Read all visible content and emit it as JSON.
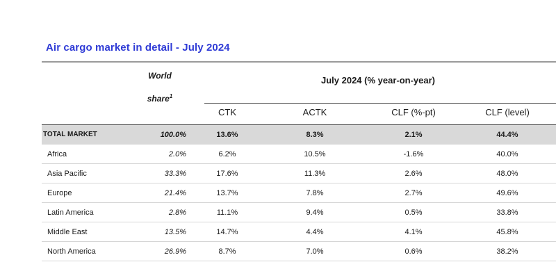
{
  "title": "Air cargo market in detail - July 2024",
  "header": {
    "world_line1": "World",
    "world_line2": "share",
    "world_sup": "1",
    "group_label": "July 2024 (% year-on-year)",
    "columns": [
      "CTK",
      "ACTK",
      "CLF (%-pt)",
      "CLF (level)"
    ]
  },
  "rows": [
    {
      "region": "TOTAL MARKET",
      "share": "100.0%",
      "ctk": "13.6%",
      "actk": "8.3%",
      "clf_pt": "2.1%",
      "clf_level": "44.4%"
    },
    {
      "region": "Africa",
      "share": "2.0%",
      "ctk": "6.2%",
      "actk": "10.5%",
      "clf_pt": "-1.6%",
      "clf_level": "40.0%"
    },
    {
      "region": "Asia Pacific",
      "share": "33.3%",
      "ctk": "17.6%",
      "actk": "11.3%",
      "clf_pt": "2.6%",
      "clf_level": "48.0%"
    },
    {
      "region": "Europe",
      "share": "21.4%",
      "ctk": "13.7%",
      "actk": "7.8%",
      "clf_pt": "2.7%",
      "clf_level": "49.6%"
    },
    {
      "region": "Latin America",
      "share": "2.8%",
      "ctk": "11.1%",
      "actk": "9.4%",
      "clf_pt": "0.5%",
      "clf_level": "33.8%"
    },
    {
      "region": "Middle East",
      "share": "13.5%",
      "ctk": "14.7%",
      "actk": "4.4%",
      "clf_pt": "4.1%",
      "clf_level": "45.8%"
    },
    {
      "region": "North America",
      "share": "26.9%",
      "ctk": "8.7%",
      "actk": "7.0%",
      "clf_pt": "0.6%",
      "clf_level": "38.2%"
    }
  ]
}
